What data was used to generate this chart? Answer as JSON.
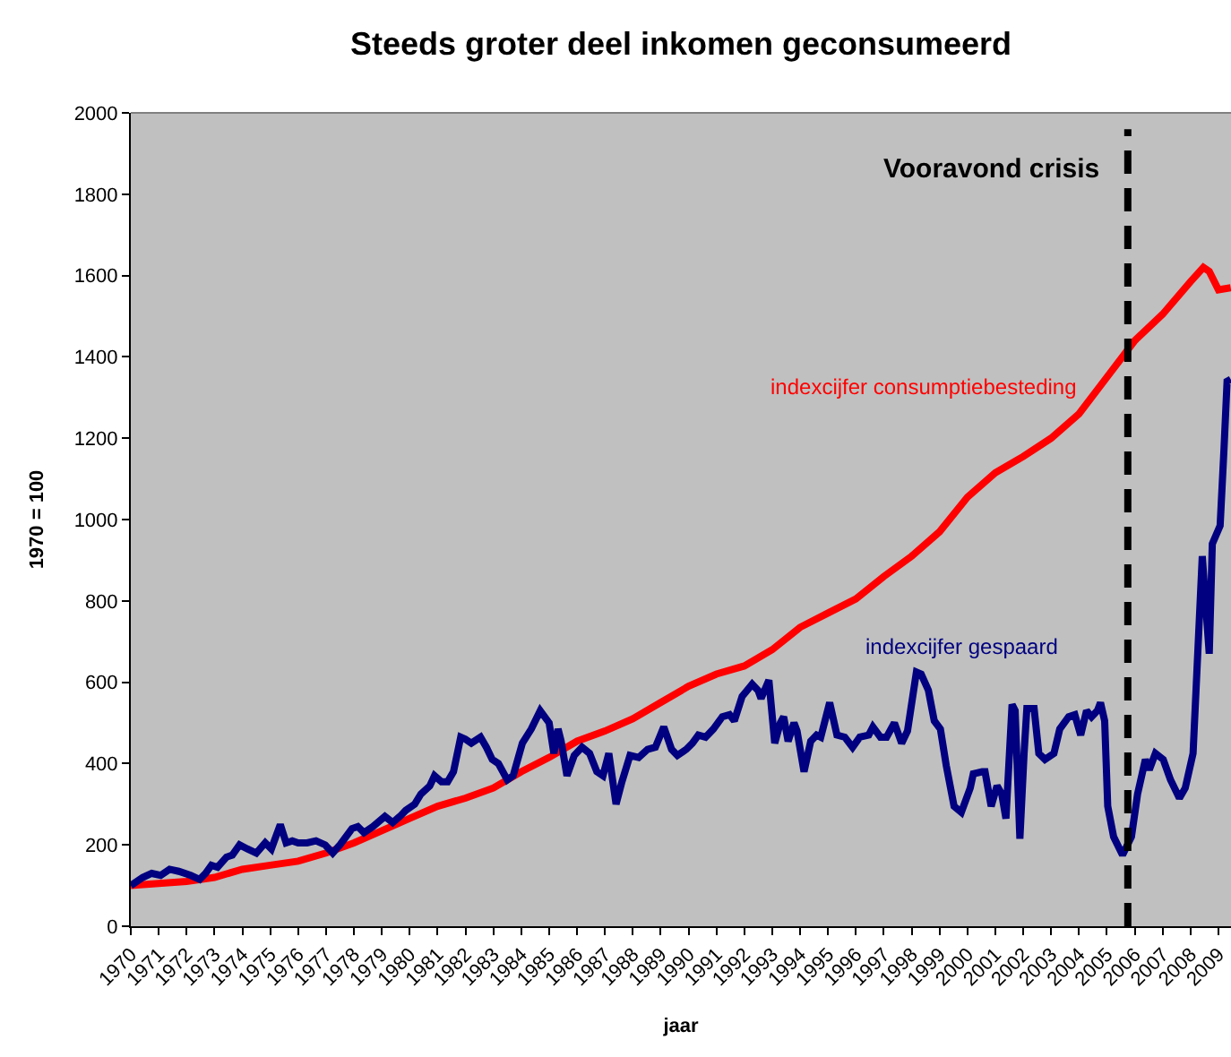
{
  "chart_data": {
    "type": "line",
    "title": "Steeds groter deel inkomen geconsumeerd",
    "xlabel": "jaar",
    "ylabel": "1970 = 100",
    "xlim": [
      1970,
      2009.45
    ],
    "xticks": [
      1970,
      1971,
      1972,
      1973,
      1974,
      1975,
      1976,
      1977,
      1978,
      1979,
      1980,
      1981,
      1982,
      1983,
      1984,
      1985,
      1986,
      1987,
      1988,
      1989,
      1990,
      1991,
      1992,
      1993,
      1994,
      1995,
      1996,
      1997,
      1998,
      1999,
      2000,
      2001,
      2002,
      2003,
      2004,
      2005,
      2006,
      2007,
      2008,
      2009
    ],
    "ylim": [
      0,
      2000
    ],
    "yticks": [
      0,
      200,
      400,
      600,
      800,
      1000,
      1200,
      1400,
      1600,
      1800,
      2000
    ],
    "grid": false,
    "legend": false,
    "marker": "none",
    "series": [
      {
        "name": "indexcijfer consumptiebesteding",
        "color": "#ff0000",
        "x": [
          1970,
          1971,
          1972,
          1973,
          1974,
          1975,
          1976,
          1977,
          1978,
          1979,
          1980,
          1981,
          1982,
          1983,
          1984,
          1985,
          1986,
          1987,
          1988,
          1989,
          1990,
          1991,
          1992,
          1993,
          1994,
          1995,
          1996,
          1997,
          1998,
          1999,
          2000,
          2001,
          2002,
          2003,
          2004,
          2005,
          2006,
          2007,
          2008,
          2008.46,
          2008.67,
          2009,
          2009.44
        ],
        "values": [
          100,
          105,
          110,
          120,
          140,
          150,
          160,
          180,
          205,
          235,
          265,
          295,
          315,
          340,
          380,
          415,
          455,
          480,
          510,
          550,
          590,
          620,
          640,
          680,
          735,
          770,
          805,
          860,
          910,
          970,
          1055,
          1115,
          1155,
          1200,
          1260,
          1350,
          1440,
          1505,
          1585,
          1620,
          1610,
          1565,
          1570
        ]
      },
      {
        "name": "indexcijfer gespaard",
        "color": "#000080",
        "x": [
          1970,
          1970.43,
          1970.75,
          1971.07,
          1971.39,
          1971.72,
          1972.15,
          1972.47,
          1972.68,
          1972.89,
          1973.11,
          1973.43,
          1973.64,
          1973.9,
          1974.18,
          1974.5,
          1974.82,
          1975.04,
          1975.36,
          1975.57,
          1975.79,
          1976,
          1976.32,
          1976.64,
          1976.97,
          1977.24,
          1977.5,
          1977.93,
          1978.14,
          1978.36,
          1978.68,
          1979.11,
          1979.39,
          1979.65,
          1979.86,
          1980.18,
          1980.4,
          1980.72,
          1980.89,
          1981.14,
          1981.36,
          1981.57,
          1981.83,
          1982,
          1982.21,
          1982.54,
          1982.75,
          1982.96,
          1983.18,
          1983.5,
          1983.71,
          1984.04,
          1984.36,
          1984.68,
          1985,
          1985.17,
          1985.32,
          1985.43,
          1985.64,
          1985.9,
          1986.18,
          1986.45,
          1986.71,
          1986.93,
          1987.14,
          1987.4,
          1987.61,
          1987.9,
          1988.21,
          1988.53,
          1988.81,
          1989.11,
          1989.39,
          1989.6,
          1989.92,
          1990.14,
          1990.35,
          1990.61,
          1990.89,
          1991.21,
          1991.47,
          1991.64,
          1991.92,
          1992.28,
          1992.49,
          1992.6,
          1992.88,
          1993.09,
          1993.29,
          1993.41,
          1993.57,
          1993.78,
          1993.89,
          1994.14,
          1994.38,
          1994.59,
          1994.74,
          1995.06,
          1995.32,
          1995.6,
          1995.88,
          1996.14,
          1996.46,
          1996.61,
          1996.88,
          1997.1,
          1997.38,
          1997.64,
          1997.85,
          1998.17,
          1998.34,
          1998.6,
          1998.81,
          1999.03,
          1999.24,
          1999.52,
          1999.78,
          2000.1,
          2000.21,
          2000.53,
          2000.63,
          2000.85,
          2001.06,
          2001.23,
          2001.38,
          2001.6,
          2001.71,
          2001.88,
          2002.03,
          2002.13,
          2002.39,
          2002.56,
          2002.78,
          2003.1,
          2003.31,
          2003.63,
          2003.85,
          2004.06,
          2004.27,
          2004.45,
          2004.66,
          2004.77,
          2004.92,
          2005.03,
          2005.24,
          2005.56,
          2005.88,
          2006.1,
          2006.38,
          2006.52,
          2006.74,
          2007.02,
          2007.28,
          2007.6,
          2007.81,
          2008.09,
          2008.42,
          2008.67,
          2008.78,
          2009.06,
          2009.2,
          2009.31,
          2009.44
        ],
        "values": [
          100,
          120,
          130,
          125,
          140,
          135,
          125,
          115,
          130,
          150,
          145,
          170,
          175,
          200,
          190,
          180,
          205,
          190,
          250,
          205,
          210,
          205,
          205,
          210,
          200,
          180,
          200,
          240,
          245,
          230,
          245,
          270,
          255,
          270,
          285,
          300,
          325,
          345,
          370,
          355,
          355,
          380,
          465,
          460,
          450,
          465,
          440,
          410,
          400,
          360,
          370,
          450,
          485,
          530,
          500,
          425,
          485,
          455,
          370,
          420,
          440,
          425,
          380,
          370,
          425,
          300,
          355,
          420,
          415,
          435,
          440,
          490,
          435,
          420,
          435,
          450,
          470,
          465,
          485,
          515,
          520,
          505,
          565,
          595,
          580,
          560,
          605,
          450,
          500,
          515,
          455,
          500,
          480,
          380,
          455,
          470,
          465,
          550,
          470,
          465,
          440,
          465,
          470,
          490,
          465,
          465,
          500,
          450,
          480,
          625,
          620,
          580,
          505,
          485,
          395,
          295,
          280,
          340,
          375,
          380,
          380,
          295,
          345,
          325,
          265,
          545,
          530,
          215,
          425,
          535,
          535,
          425,
          410,
          425,
          485,
          515,
          520,
          470,
          530,
          515,
          530,
          550,
          505,
          295,
          220,
          175,
          220,
          325,
          410,
          385,
          425,
          410,
          360,
          315,
          340,
          425,
          910,
          670,
          940,
          985,
          1175,
          1340,
          1345
        ]
      }
    ],
    "ref_lines": [
      {
        "axis": "x",
        "value": 2005.75,
        "label": "Vooravond crisis",
        "color": "#000000",
        "line_style": "dashed"
      }
    ]
  }
}
